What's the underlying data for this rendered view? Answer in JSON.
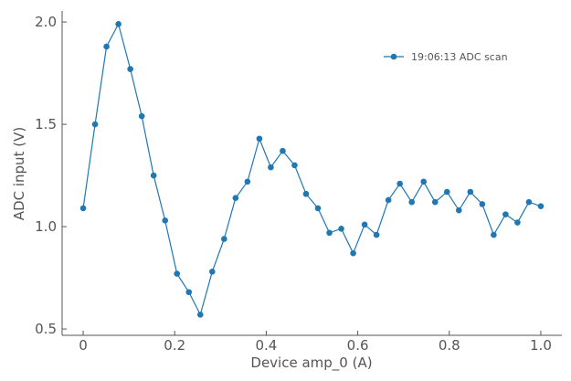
{
  "chart_data": {
    "type": "line",
    "x_label": "Device amp_0 (A)",
    "y_label": "ADC input (V)",
    "x": [
      0,
      0.026,
      0.051,
      0.077,
      0.103,
      0.128,
      0.154,
      0.179,
      0.205,
      0.231,
      0.256,
      0.282,
      0.308,
      0.333,
      0.359,
      0.385,
      0.41,
      0.436,
      0.462,
      0.487,
      0.513,
      0.538,
      0.564,
      0.59,
      0.615,
      0.641,
      0.667,
      0.692,
      0.718,
      0.744,
      0.769,
      0.795,
      0.821,
      0.846,
      0.872,
      0.897,
      0.923,
      0.949,
      0.974,
      1
    ],
    "series": [
      {
        "name": "19:06:13 ADC scan",
        "color": "#1f77b4",
        "values": [
          1.09,
          1.5,
          1.88,
          1.99,
          1.77,
          1.54,
          1.25,
          1.03,
          0.77,
          0.68,
          0.57,
          0.78,
          0.94,
          1.14,
          1.22,
          1.43,
          1.29,
          1.37,
          1.3,
          1.16,
          1.09,
          0.97,
          0.99,
          0.87,
          1.01,
          0.96,
          1.13,
          1.21,
          1.12,
          1.22,
          1.12,
          1.17,
          1.08,
          1.17,
          1.11,
          0.96,
          1.06,
          1.02,
          1.12,
          1.1
        ]
      }
    ],
    "xlim": [
      -0.046,
      1.046
    ],
    "ylim": [
      0.469,
      2.054
    ],
    "xticks": [
      0,
      0.2,
      0.4,
      0.6,
      0.8,
      {
        "value": 1,
        "label": "1.0"
      }
    ],
    "yticks": [
      0.5,
      {
        "value": 1,
        "label": "1.0"
      },
      1.5,
      {
        "value": 2,
        "label": "2.0"
      }
    ],
    "legend": "upper right"
  }
}
